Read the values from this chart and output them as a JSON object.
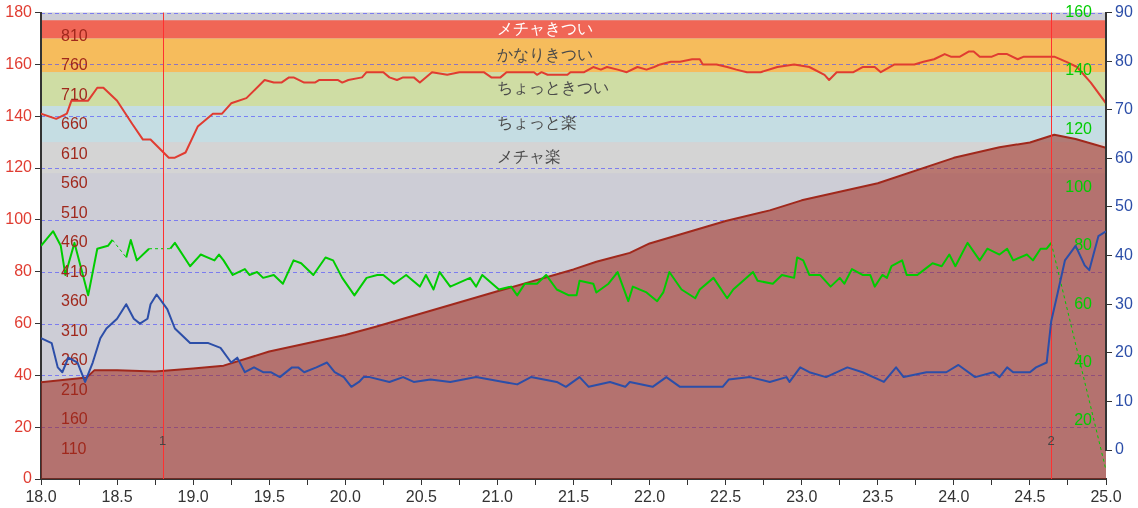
{
  "chart_data": [
    {
      "type": "line",
      "xlim": [
        18,
        25
      ],
      "xticks": [
        {
          "value": 18,
          "label": "18.0"
        },
        {
          "value": 18.25,
          "label": null
        },
        {
          "value": 18.5,
          "label": "18.5"
        },
        {
          "value": 18.75,
          "label": null
        },
        {
          "value": 19,
          "label": "19.0"
        },
        {
          "value": 19.25,
          "label": null
        },
        {
          "value": 19.5,
          "label": "19.5"
        },
        {
          "value": 19.75,
          "label": null
        },
        {
          "value": 20,
          "label": "20.0"
        },
        {
          "value": 20.25,
          "label": null
        },
        {
          "value": 20.5,
          "label": "20.5"
        },
        {
          "value": 20.75,
          "label": null
        },
        {
          "value": 21,
          "label": "21.0"
        },
        {
          "value": 21.25,
          "label": null
        },
        {
          "value": 21.5,
          "label": "21.5"
        },
        {
          "value": 21.75,
          "label": null
        },
        {
          "value": 22,
          "label": "22.0"
        },
        {
          "value": 22.25,
          "label": null
        },
        {
          "value": 22.5,
          "label": "22.5"
        },
        {
          "value": 22.75,
          "label": null
        },
        {
          "value": 23,
          "label": "23.0"
        },
        {
          "value": 23.25,
          "label": null
        },
        {
          "value": 23.5,
          "label": "23.5"
        },
        {
          "value": 23.75,
          "label": null
        },
        {
          "value": 24,
          "label": "24.0"
        },
        {
          "value": 24.25,
          "label": null
        },
        {
          "value": 24.5,
          "label": "24.5"
        },
        {
          "value": 24.75,
          "label": null
        },
        {
          "value": 25,
          "label": "25.0"
        }
      ],
      "ylim": [
        0,
        180
      ],
      "yticks": [
        0,
        20,
        40,
        60,
        80,
        100,
        120,
        140,
        160,
        180
      ],
      "y2lim": [
        60,
        850
      ],
      "y2ticks": [
        110,
        160,
        210,
        260,
        310,
        360,
        410,
        460,
        510,
        560,
        610,
        660,
        710,
        760,
        810
      ],
      "y3lim": [
        0,
        160
      ],
      "y3ticks": [
        20,
        40,
        60,
        80,
        100,
        120,
        140,
        160
      ],
      "grid": "y",
      "bands": [
        {
          "axis": "y",
          "from": 170,
          "to": 177,
          "label": "メチャきつい",
          "color": "#f06656"
        },
        {
          "axis": "y",
          "from": 157,
          "to": 170,
          "label": "かなりきつい",
          "color": "#f6bc5c"
        },
        {
          "axis": "y",
          "from": 144,
          "to": 157,
          "label": "ちょっときつい",
          "color": "#cfdda4"
        },
        {
          "axis": "y",
          "from": 130,
          "to": 144,
          "label": "ちょっと楽",
          "color": "#c5dde3"
        },
        {
          "axis": "y",
          "from": 118,
          "to": 130,
          "label": "メチャ楽",
          "color": "#d4d4d4"
        }
      ],
      "ref_lines": [
        {
          "axis": "x",
          "value": 18.8,
          "color": "#ff3030"
        },
        {
          "axis": "x",
          "value": 24.64,
          "color": "#ff3030"
        }
      ],
      "annotations": [
        {
          "text": "1",
          "x": 18.8,
          "y": 12
        },
        {
          "text": "2",
          "x": 24.64,
          "y": 12
        }
      ],
      "series": [
        {
          "color": "#e03c31",
          "x": [
            18.0,
            18.1,
            18.17,
            18.2,
            18.31,
            18.37,
            18.41,
            18.5,
            18.6,
            18.67,
            18.72,
            18.84,
            18.88,
            18.95,
            19.03,
            19.13,
            19.19,
            19.25,
            19.35,
            19.47,
            19.53,
            19.58,
            19.63,
            19.66,
            19.73,
            19.8,
            19.83,
            19.95,
            19.98,
            20.02,
            20.11,
            20.14,
            20.2,
            20.25,
            20.29,
            20.34,
            20.38,
            20.45,
            20.49,
            20.57,
            20.67,
            20.75,
            20.91,
            20.96,
            21.02,
            21.06,
            21.24,
            21.26,
            21.29,
            21.33,
            21.46,
            21.48,
            21.57,
            21.63,
            21.68,
            21.72,
            21.79,
            21.85,
            21.92,
            21.98,
            22.03,
            22.07,
            22.14,
            22.2,
            22.28,
            22.33,
            22.35,
            22.44,
            22.51,
            22.57,
            22.64,
            22.73,
            22.84,
            22.95,
            23.05,
            23.15,
            23.18,
            23.23,
            23.34,
            23.4,
            23.48,
            23.52,
            23.61,
            23.74,
            23.8,
            23.87,
            23.94,
            23.98,
            24.04,
            24.1,
            24.13,
            24.17,
            24.25,
            24.29,
            24.35,
            24.42,
            24.46,
            24.66,
            24.74,
            24.81,
            24.9,
            25.0
          ],
          "values": [
            141,
            139,
            141,
            146,
            146,
            151,
            151,
            146,
            137,
            131,
            131,
            124,
            124,
            126,
            136,
            141,
            141,
            145,
            147,
            154,
            153,
            153,
            155,
            155,
            153,
            153,
            154,
            154,
            153,
            154,
            155,
            157,
            157,
            157,
            155,
            154,
            155,
            155,
            153,
            157,
            156,
            157,
            157,
            155,
            155,
            157,
            157,
            156,
            157,
            156,
            156,
            157,
            157,
            159,
            158,
            159,
            158,
            157,
            159,
            158,
            159,
            160,
            161,
            161,
            162,
            162,
            160,
            160,
            159,
            158,
            157,
            157,
            159,
            160,
            159,
            156,
            154,
            157,
            157,
            159,
            159,
            157,
            160,
            160,
            161,
            162,
            164,
            163,
            163,
            165,
            165,
            163,
            163,
            164,
            164,
            162,
            163,
            163,
            161,
            159,
            153,
            145
          ]
        },
        {
          "type": "line",
          "axis": "y3",
          "color": "#00cc00",
          "x": [
            18.0,
            18.08,
            18.13,
            18.16,
            18.22,
            18.31,
            18.37,
            18.44,
            18.47,
            18.52,
            18.56,
            18.59,
            18.63,
            18.71,
            18.78,
            18.85,
            18.88,
            18.98,
            19.05,
            19.14,
            19.17,
            19.2,
            19.26,
            19.34,
            19.37,
            19.42,
            19.46,
            19.53,
            19.59,
            19.66,
            19.71,
            19.79,
            19.87,
            19.92,
            19.98,
            20.06,
            20.1,
            20.14,
            20.21,
            20.25,
            20.32,
            20.4,
            20.49,
            20.53,
            20.58,
            20.62,
            20.69,
            20.82,
            20.86,
            20.9,
            21.01,
            21.09,
            21.13,
            21.18,
            21.26,
            21.32,
            21.39,
            21.47,
            21.52,
            21.54,
            21.63,
            21.65,
            21.73,
            21.79,
            21.86,
            21.89,
            21.98,
            22.05,
            22.09,
            22.13,
            22.21,
            22.3,
            22.33,
            22.42,
            22.51,
            22.55,
            22.68,
            22.71,
            22.81,
            22.87,
            22.95,
            22.97,
            23.01,
            23.05,
            23.12,
            23.19,
            23.25,
            23.28,
            23.33,
            23.4,
            23.45,
            23.48,
            23.53,
            23.56,
            23.59,
            23.66,
            23.69,
            23.76,
            23.81,
            23.86,
            23.92,
            23.97,
            24.01,
            24.05,
            24.09,
            24.17,
            24.22,
            24.3,
            24.35,
            24.39,
            24.48,
            24.52,
            24.57,
            24.61,
            24.64,
            24.8,
            25.0
          ],
          "values": [
            80,
            85,
            80,
            70,
            81,
            63,
            79,
            80,
            82,
            null,
            76,
            82,
            75,
            79,
            null,
            79,
            81,
            73,
            77,
            75,
            77,
            75,
            70,
            72,
            70,
            71,
            69,
            70,
            67,
            75,
            74,
            70,
            76,
            75,
            69,
            63,
            66,
            69,
            70,
            70,
            67,
            70,
            66,
            70,
            65,
            71,
            66,
            69,
            66,
            70,
            65,
            66,
            63,
            67,
            67,
            70,
            65,
            63,
            63,
            68,
            67,
            64,
            67,
            71,
            61,
            66,
            64,
            61,
            64,
            71,
            65,
            62,
            65,
            69,
            62,
            65,
            71,
            68,
            67,
            70,
            69,
            76,
            75,
            70,
            70,
            66,
            69,
            67,
            72,
            70,
            70,
            66,
            70,
            69,
            73,
            75,
            70,
            70,
            72,
            74,
            73,
            77,
            73,
            77,
            81,
            75,
            79,
            77,
            79,
            75,
            77,
            75,
            79,
            79,
            81,
            null,
            3
          ]
        },
        {
          "type": "area",
          "axis": "y2",
          "color": "#a0281c",
          "x": [
            18.0,
            18.3,
            18.35,
            18.5,
            18.75,
            19.0,
            19.2,
            19.5,
            20.0,
            20.2,
            21.0,
            21.5,
            21.65,
            21.87,
            22.0,
            22.5,
            22.79,
            23.0,
            23.5,
            24.0,
            24.3,
            24.5,
            24.66,
            24.8,
            25.0
          ],
          "values": [
            224,
            232,
            244,
            244,
            242,
            247,
            252,
            276,
            304,
            318,
            378,
            415,
            428,
            443,
            459,
            497,
            515,
            532,
            561,
            604,
            622,
            630,
            643,
            636,
            621
          ]
        }
      ]
    },
    {
      "type": "line",
      "xlim": [
        18,
        25
      ],
      "ylim": [
        0,
        90
      ],
      "yticks": [
        0,
        10,
        20,
        30,
        40,
        50,
        60,
        70,
        80,
        90
      ],
      "tick_labels": "y",
      "series": [
        {
          "color": "#2c4ea8",
          "x": [
            18.0,
            18.07,
            18.11,
            18.14,
            18.18,
            18.24,
            18.29,
            18.34,
            18.39,
            18.43,
            18.5,
            18.56,
            18.61,
            18.65,
            18.7,
            18.72,
            18.76,
            18.83,
            18.88,
            18.98,
            19.03,
            19.1,
            19.18,
            19.25,
            19.29,
            19.34,
            19.4,
            19.46,
            19.51,
            19.57,
            19.65,
            19.69,
            19.73,
            19.81,
            19.88,
            19.93,
            19.99,
            20.04,
            20.09,
            20.12,
            20.16,
            20.29,
            20.38,
            20.45,
            20.56,
            20.69,
            20.86,
            21.04,
            21.13,
            21.22,
            21.39,
            21.45,
            21.54,
            21.6,
            21.74,
            21.84,
            21.87,
            22.02,
            22.11,
            22.2,
            22.35,
            22.48,
            22.52,
            22.66,
            22.79,
            22.9,
            22.92,
            22.99,
            23.05,
            23.16,
            23.3,
            23.4,
            23.54,
            23.62,
            23.67,
            23.82,
            23.95,
            24.03,
            24.14,
            24.26,
            24.3,
            24.35,
            24.39,
            24.5,
            24.54,
            24.61,
            24.64,
            24.68,
            24.73,
            24.8,
            24.86,
            24.89,
            24.95,
            25.0
          ],
          "values": [
            23,
            22,
            17,
            16,
            19,
            18,
            14,
            18,
            23,
            25,
            27,
            30,
            27,
            26,
            27,
            30,
            32,
            29,
            25,
            22,
            22,
            22,
            21,
            18,
            19,
            16,
            17,
            16,
            16,
            15,
            17,
            17,
            16,
            17,
            18,
            16,
            15,
            13,
            14,
            15,
            15,
            14,
            15,
            14,
            14.5,
            14,
            15,
            14,
            13.5,
            15,
            14,
            13,
            15,
            13,
            14,
            13,
            14,
            13,
            15,
            13,
            13,
            13,
            14.5,
            15,
            14,
            15,
            14,
            17,
            16,
            15,
            17,
            16,
            14,
            17,
            15,
            16,
            16,
            17.5,
            15,
            16,
            15,
            17,
            16,
            16,
            17,
            18,
            26.5,
            32,
            39,
            42,
            38,
            37,
            44,
            45
          ]
        }
      ]
    }
  ]
}
